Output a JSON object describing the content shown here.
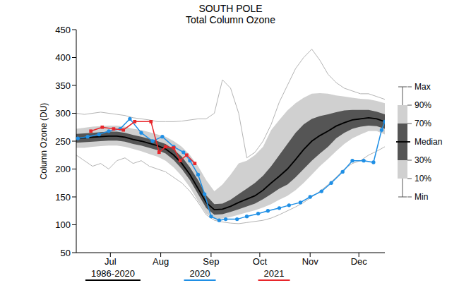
{
  "chart_data": {
    "type": "line",
    "title": "SOUTH POLE",
    "subtitle": "Total Column Ozone",
    "ylabel": "Column Ozone (DU)",
    "xlim": [
      175,
      365
    ],
    "xticks": [
      {
        "value": 196,
        "label": "Jul"
      },
      {
        "value": 227,
        "label": "Aug"
      },
      {
        "value": 258,
        "label": "Sep"
      },
      {
        "value": 288,
        "label": "Oct"
      },
      {
        "value": 319,
        "label": "Nov"
      },
      {
        "value": 349,
        "label": "Dec"
      }
    ],
    "ylim": [
      50,
      450
    ],
    "yticks": [
      50,
      100,
      150,
      200,
      250,
      300,
      350,
      400,
      450
    ],
    "grid": false,
    "legend": "right",
    "climatology": {
      "name": "1986-2020",
      "color": "#000000",
      "x": [
        175,
        180,
        185,
        190,
        195,
        200,
        205,
        210,
        215,
        220,
        225,
        230,
        235,
        240,
        245,
        250,
        255,
        260,
        265,
        270,
        275,
        280,
        285,
        290,
        295,
        300,
        305,
        310,
        315,
        320,
        325,
        330,
        335,
        340,
        345,
        350,
        355,
        360,
        365
      ],
      "series": [
        {
          "name": "Max",
          "type": "line",
          "color": "#b4b4b4",
          "values": [
            300,
            298,
            300,
            302,
            300,
            298,
            296,
            292,
            290,
            288,
            285,
            285,
            285,
            286,
            288,
            290,
            290,
            300,
            360,
            345,
            300,
            220,
            230,
            250,
            280,
            320,
            350,
            380,
            400,
            415,
            395,
            370,
            355,
            345,
            340,
            335,
            335,
            330,
            325
          ]
        },
        {
          "name": "90%",
          "type": "area",
          "color": "#d0d0d0",
          "values": [
            272,
            274,
            276,
            277,
            278,
            278,
            276,
            272,
            270,
            266,
            262,
            258,
            250,
            240,
            225,
            205,
            180,
            160,
            172,
            190,
            210,
            215,
            225,
            240,
            270,
            288,
            305,
            318,
            328,
            335,
            336,
            335,
            332,
            330,
            328,
            326,
            325,
            322,
            318
          ]
        },
        {
          "name": "70%",
          "type": "area",
          "color": "#555555",
          "values": [
            263,
            264,
            265,
            266,
            267,
            267,
            265,
            261,
            258,
            254,
            250,
            245,
            235,
            222,
            203,
            180,
            153,
            137,
            138,
            145,
            155,
            165,
            175,
            188,
            205,
            225,
            245,
            265,
            280,
            290,
            295,
            298,
            302,
            305,
            306,
            306,
            306,
            303,
            298
          ]
        },
        {
          "name": "Median",
          "type": "line",
          "color": "#000000",
          "values": [
            255,
            256,
            257,
            258,
            259,
            259,
            257,
            253,
            250,
            246,
            242,
            236,
            225,
            210,
            190,
            165,
            140,
            127,
            128,
            133,
            140,
            146,
            152,
            162,
            175,
            187,
            200,
            217,
            235,
            250,
            260,
            268,
            277,
            283,
            288,
            290,
            292,
            290,
            285
          ]
        },
        {
          "name": "30%",
          "type": "area",
          "color": "#555555",
          "values": [
            247,
            248,
            249,
            250,
            251,
            251,
            249,
            245,
            242,
            238,
            234,
            228,
            216,
            200,
            180,
            155,
            130,
            118,
            119,
            123,
            128,
            133,
            138,
            146,
            155,
            165,
            172,
            185,
            200,
            215,
            228,
            240,
            255,
            265,
            272,
            276,
            278,
            277,
            272
          ]
        },
        {
          "name": "10%",
          "type": "area",
          "color": "#d0d0d0",
          "values": [
            238,
            238,
            240,
            241,
            242,
            242,
            240,
            236,
            232,
            227,
            222,
            215,
            203,
            187,
            167,
            142,
            120,
            110,
            111,
            114,
            118,
            122,
            126,
            131,
            137,
            145,
            152,
            162,
            175,
            190,
            205,
            218,
            232,
            245,
            255,
            262,
            268,
            268,
            262
          ]
        },
        {
          "name": "Min",
          "type": "line",
          "color": "#b4b4b4",
          "values": [
            225,
            215,
            205,
            210,
            200,
            215,
            220,
            210,
            215,
            205,
            200,
            195,
            185,
            175,
            160,
            140,
            118,
            108,
            105,
            103,
            102,
            104,
            106,
            108,
            112,
            118,
            125,
            132,
            140,
            150,
            160,
            172,
            185,
            200,
            210,
            215,
            225,
            232,
            240
          ]
        }
      ]
    },
    "series": [
      {
        "name": "2020",
        "color": "#1f8fe5",
        "marker": "circle",
        "x": [
          176,
          182,
          189,
          195,
          202,
          208,
          215,
          222,
          228,
          235,
          241,
          245,
          250,
          254,
          258,
          263,
          267,
          274,
          280,
          287,
          293,
          300,
          306,
          313,
          319,
          326,
          332,
          339,
          345,
          352,
          358,
          363,
          365
        ],
        "values": [
          255,
          258,
          262,
          268,
          272,
          290,
          265,
          250,
          258,
          240,
          230,
          215,
          190,
          155,
          115,
          108,
          110,
          110,
          115,
          120,
          125,
          130,
          135,
          140,
          150,
          160,
          175,
          195,
          215,
          215,
          212,
          270,
          285
        ]
      },
      {
        "name": "2021",
        "color": "#e8262b",
        "marker": "square",
        "x": [
          184,
          191,
          198,
          204,
          211,
          221,
          226,
          230,
          235,
          239,
          243,
          248
        ],
        "values": [
          268,
          275,
          272,
          270,
          285,
          285,
          230,
          240,
          238,
          215,
          225,
          210
        ]
      }
    ]
  }
}
